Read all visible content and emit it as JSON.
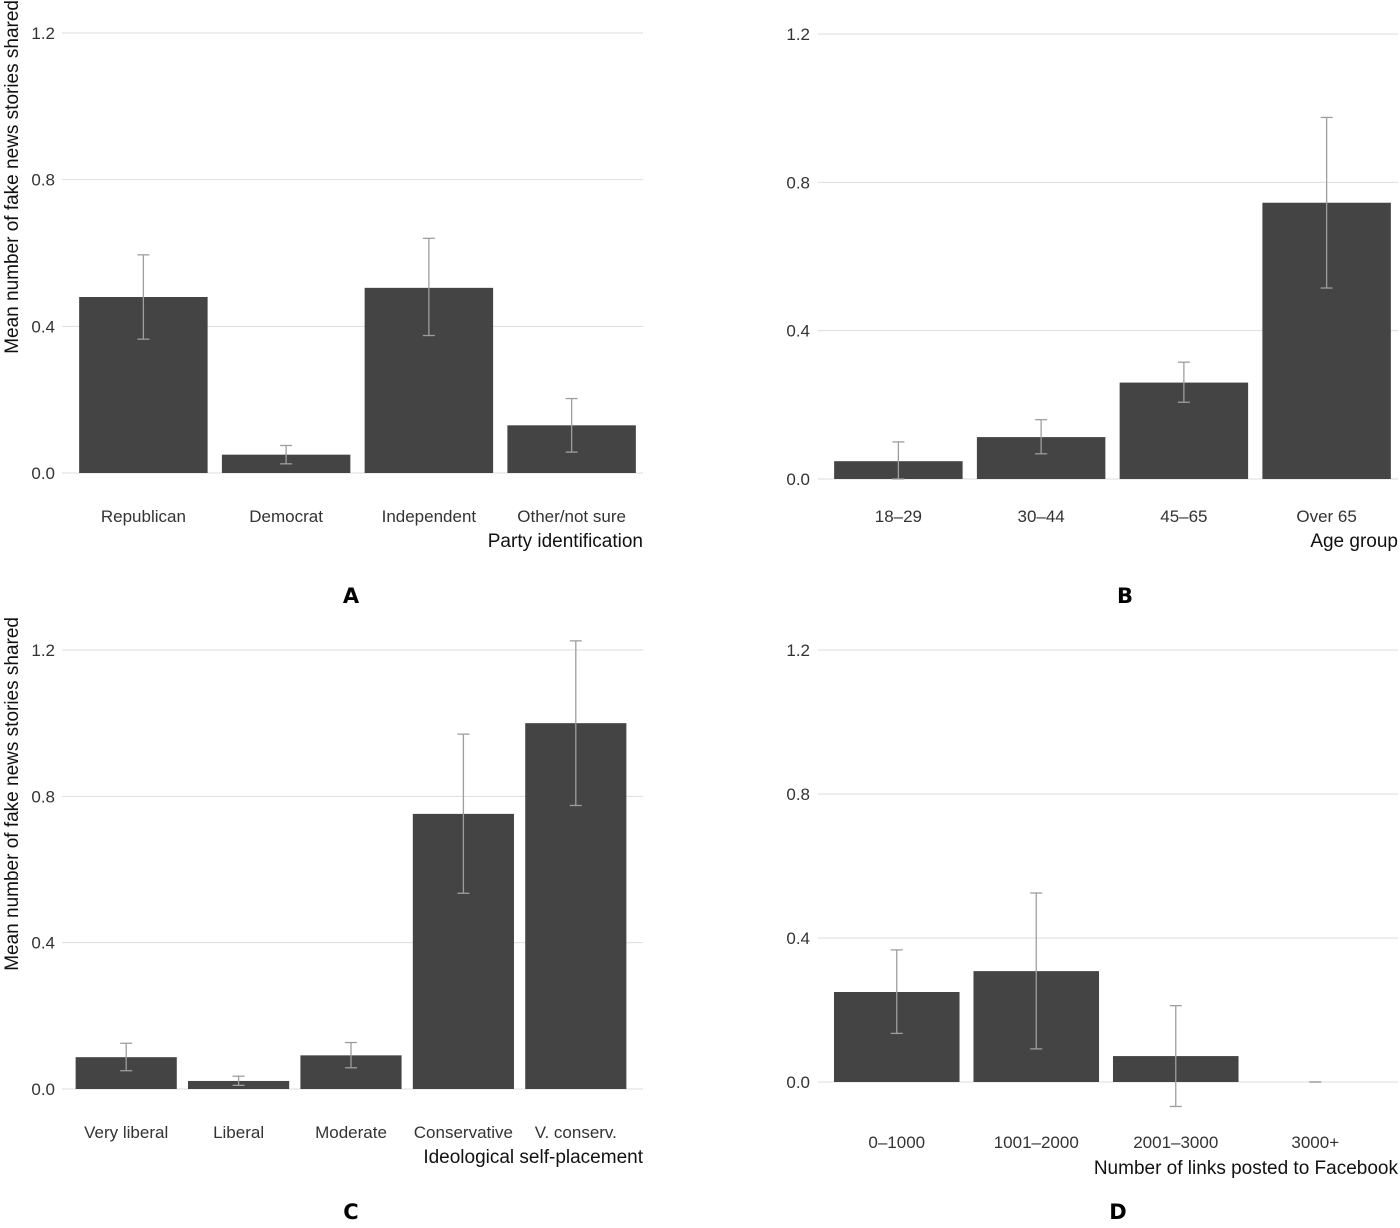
{
  "figure": {
    "y_axis_label": "Mean number of fake news stories shared",
    "colors": {
      "bar": "#444444",
      "errorbar": "#9e9e9e",
      "grid": "#dddddd",
      "text": "#333333",
      "panel_label": "#000000"
    }
  },
  "chart_data": [
    {
      "panel": "A",
      "type": "bar",
      "title": "",
      "xlabel": "Party identification",
      "ylabel": "Mean number of fake news stories shared",
      "categories": [
        "Republican",
        "Democrat",
        "Independent",
        "Other/not sure"
      ],
      "values": [
        0.48,
        0.05,
        0.505,
        0.13
      ],
      "error_low": [
        0.365,
        0.025,
        0.375,
        0.057
      ],
      "error_high": [
        0.595,
        0.075,
        0.64,
        0.203
      ],
      "yticks": [
        "0.0",
        "0.4",
        "0.8",
        "1.2"
      ],
      "ylim": [
        0,
        1.2
      ],
      "grid": true
    },
    {
      "panel": "B",
      "type": "bar",
      "title": "",
      "xlabel": "Age group",
      "ylabel": "",
      "categories": [
        "18–29",
        "30–44",
        "45–65",
        "Over 65"
      ],
      "values": [
        0.048,
        0.113,
        0.26,
        0.745
      ],
      "error_low": [
        0.0,
        0.068,
        0.207,
        0.515
      ],
      "error_high": [
        0.1,
        0.16,
        0.315,
        0.975
      ],
      "yticks": [
        "0.0",
        "0.4",
        "0.8",
        "1.2"
      ],
      "ylim": [
        0,
        1.2
      ],
      "grid": true
    },
    {
      "panel": "C",
      "type": "bar",
      "title": "",
      "xlabel": "Ideological self-placement",
      "ylabel": "Mean number of fake news stories shared",
      "categories": [
        "Very liberal",
        "Liberal",
        "Moderate",
        "Conservative",
        "V. conserv."
      ],
      "values": [
        0.087,
        0.022,
        0.092,
        0.752,
        1.0
      ],
      "error_low": [
        0.05,
        0.01,
        0.058,
        0.535,
        0.775
      ],
      "error_high": [
        0.125,
        0.035,
        0.127,
        0.97,
        1.225
      ],
      "yticks": [
        "0.0",
        "0.4",
        "0.8",
        "1.2"
      ],
      "ylim": [
        0,
        1.2
      ],
      "grid": true
    },
    {
      "panel": "D",
      "type": "bar",
      "title": "",
      "xlabel": "Number of links posted to Facebook",
      "ylabel": "",
      "categories": [
        "0–1000",
        "1001–2000",
        "2001–3000",
        "3000+"
      ],
      "values": [
        0.25,
        0.308,
        0.072,
        0.0
      ],
      "error_low": [
        0.135,
        0.092,
        -0.068,
        0.0
      ],
      "error_high": [
        0.367,
        0.525,
        0.212,
        0.0
      ],
      "yticks": [
        "0.0",
        "0.4",
        "0.8",
        "1.2"
      ],
      "ylim": [
        0,
        1.2
      ],
      "grid": true
    }
  ]
}
